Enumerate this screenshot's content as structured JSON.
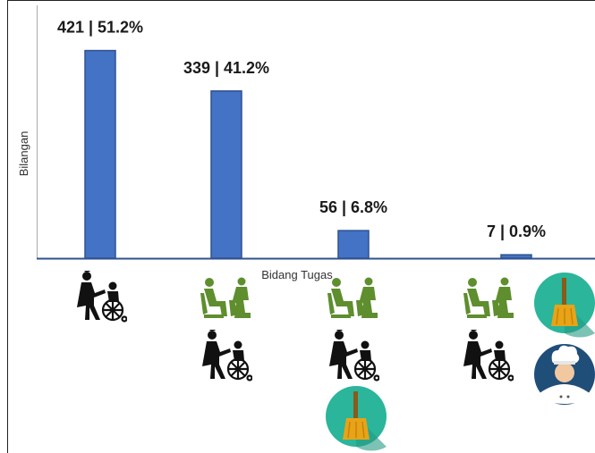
{
  "chart_data": {
    "type": "bar",
    "categories": [
      "",
      "",
      "",
      ""
    ],
    "values": [
      421,
      339,
      56,
      7
    ],
    "data_labels": [
      "421 | 51.2%",
      "339 | 41.2%",
      "56 | 6.8%",
      "7 | 0.9%"
    ],
    "title": "",
    "xlabel": "Bidang Tugas",
    "ylabel": "Bilangan",
    "ylim": [
      0,
      480
    ],
    "grid": false,
    "legend": "none",
    "bar_color": "#4472C4",
    "bar_edge_color": "#2F528F"
  },
  "category_icons": [
    [
      "wheelchair-carer-icon"
    ],
    [
      "seated-care-icon",
      "wheelchair-carer-icon"
    ],
    [
      "seated-care-icon",
      "wheelchair-carer-icon",
      "broom-icon"
    ],
    [
      "seated-care-icon",
      "broom-icon",
      "wheelchair-carer-icon",
      "chef-icon"
    ]
  ],
  "colors": {
    "icon_green": "#5E8E2E",
    "badge_teal": "#2BB59A",
    "broom_gold": "#E8A317",
    "chef_navy": "#1F4E79",
    "frame": "#222222"
  }
}
